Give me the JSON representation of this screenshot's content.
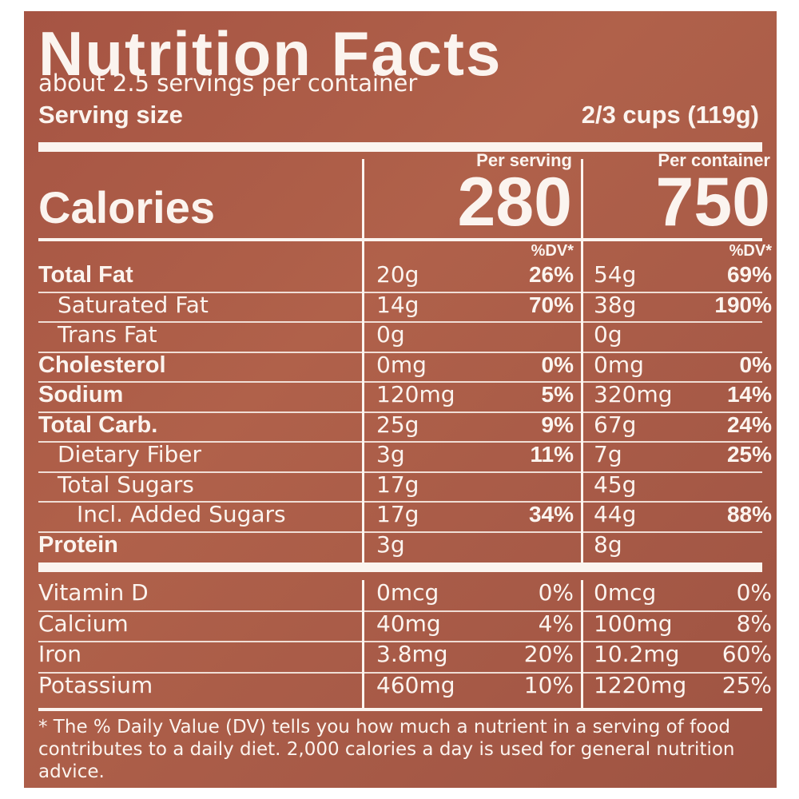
{
  "title": "Nutrition Facts",
  "servings": "about 2.5 servings per container",
  "serving_size_label": "Serving size",
  "serving_size_value": "2/3 cups (119g)",
  "columns": [
    "Per serving",
    "Per container"
  ],
  "calories_label": "Calories",
  "calories": [
    "280",
    "750"
  ],
  "dv_header": "%DV*",
  "nutrients": [
    {
      "name": "Total Fat",
      "level": 0,
      "serving": [
        "20g",
        "26%"
      ],
      "container": [
        "54g",
        "69%"
      ]
    },
    {
      "name": "Saturated Fat",
      "level": 1,
      "serving": [
        "14g",
        "70%"
      ],
      "container": [
        "38g",
        "190%"
      ]
    },
    {
      "name": "Trans Fat",
      "level": 1,
      "serving": [
        "0g",
        null
      ],
      "container": [
        "0g",
        null
      ]
    },
    {
      "name": "Cholesterol",
      "level": 0,
      "serving": [
        "0mg",
        "0%"
      ],
      "container": [
        "0mg",
        "0%"
      ]
    },
    {
      "name": "Sodium",
      "level": 0,
      "serving": [
        "120mg",
        "5%"
      ],
      "container": [
        "320mg",
        "14%"
      ]
    },
    {
      "name": "Total Carb.",
      "level": 0,
      "serving": [
        "25g",
        "9%"
      ],
      "container": [
        "67g",
        "24%"
      ]
    },
    {
      "name": "Dietary Fiber",
      "level": 1,
      "serving": [
        "3g",
        "11%"
      ],
      "container": [
        "7g",
        "25%"
      ]
    },
    {
      "name": "Total Sugars",
      "level": 1,
      "serving": [
        "17g",
        null
      ],
      "container": [
        "45g",
        null
      ]
    },
    {
      "name": "Incl. Added Sugars",
      "level": 2,
      "serving": [
        "17g",
        "34%"
      ],
      "container": [
        "44g",
        "88%"
      ]
    },
    {
      "name": "Protein",
      "level": 0,
      "serving": [
        "3g",
        null
      ],
      "container": [
        "8g",
        null
      ]
    }
  ],
  "vitamins": [
    {
      "name": "Vitamin D",
      "serving": [
        "0mcg",
        "0%"
      ],
      "container": [
        "0mcg",
        "0%"
      ]
    },
    {
      "name": "Calcium",
      "serving": [
        "40mg",
        "4%"
      ],
      "container": [
        "100mg",
        "8%"
      ]
    },
    {
      "name": "Iron",
      "serving": [
        "3.8mg",
        "20%"
      ],
      "container": [
        "10.2mg",
        "60%"
      ]
    },
    {
      "name": "Potassium",
      "serving": [
        "460mg",
        "10%"
      ],
      "container": [
        "1220mg",
        "25%"
      ]
    }
  ],
  "footnote": "* The % Daily Value (DV) tells you how much a nutrient in a serving of food contributes to a daily diet. 2,000 calories a day is used for general nutrition advice."
}
